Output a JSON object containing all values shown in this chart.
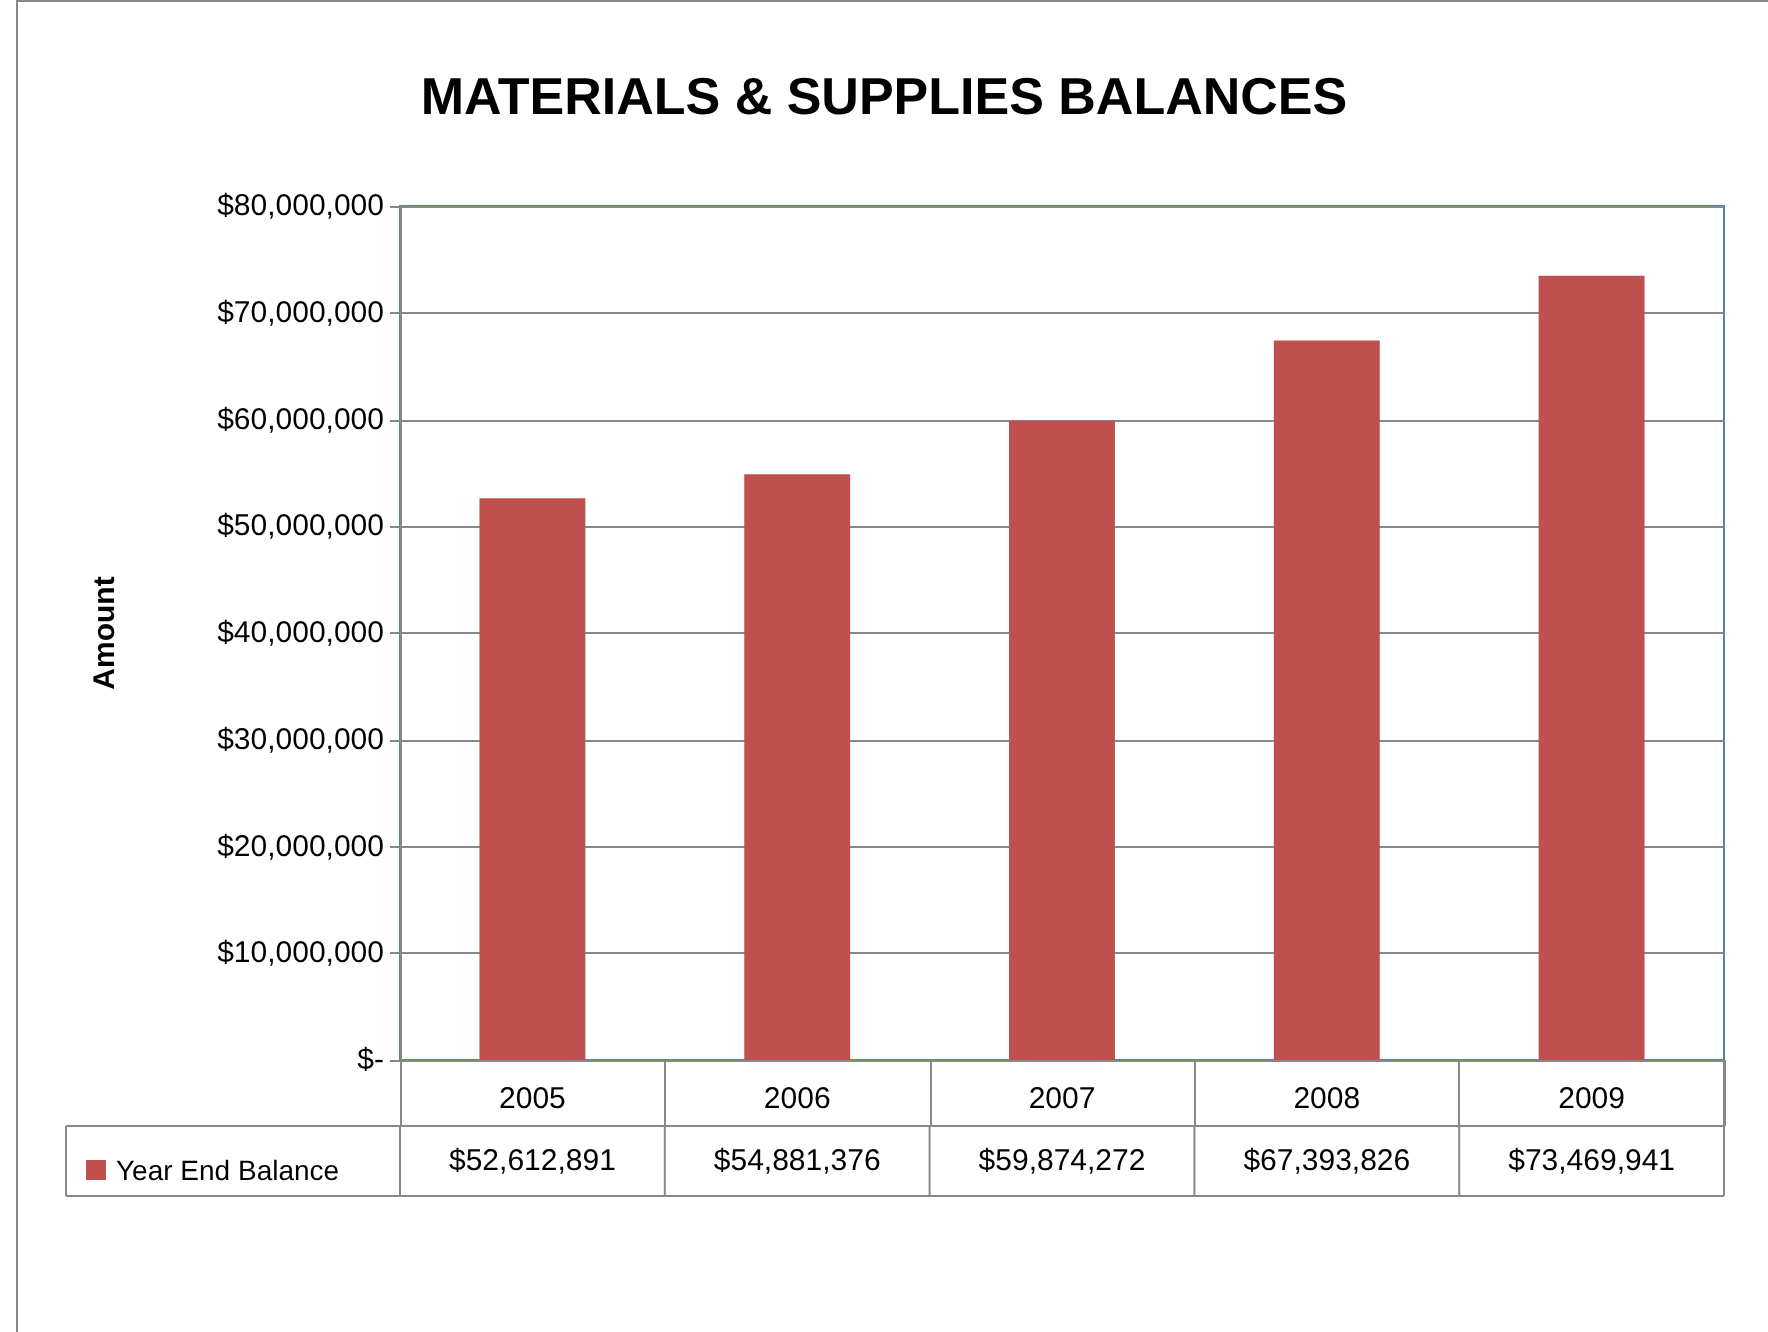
{
  "chart_data": {
    "type": "bar",
    "title": "MATERIALS & SUPPLIES BALANCES",
    "ylabel": "Amount",
    "categories": [
      "2005",
      "2006",
      "2007",
      "2008",
      "2009"
    ],
    "series": [
      {
        "name": "Year End Balance",
        "color": "#c0504d",
        "values": [
          52612891,
          54881376,
          59874272,
          67393826,
          73469941
        ],
        "value_labels": [
          "$52,612,891",
          "$54,881,376",
          "$59,874,272",
          "$67,393,826",
          "$73,469,941"
        ]
      }
    ],
    "ylim": [
      0,
      80000000
    ],
    "yticks": [
      {
        "value": 0,
        "label": "$-"
      },
      {
        "value": 10000000,
        "label": "$10,000,000"
      },
      {
        "value": 20000000,
        "label": "$20,000,000"
      },
      {
        "value": 30000000,
        "label": "$30,000,000"
      },
      {
        "value": 40000000,
        "label": "$40,000,000"
      },
      {
        "value": 50000000,
        "label": "$50,000,000"
      },
      {
        "value": 60000000,
        "label": "$60,000,000"
      },
      {
        "value": 70000000,
        "label": "$70,000,000"
      },
      {
        "value": 80000000,
        "label": "$80,000,000"
      }
    ],
    "grid": "y",
    "legend": "bottom left"
  }
}
